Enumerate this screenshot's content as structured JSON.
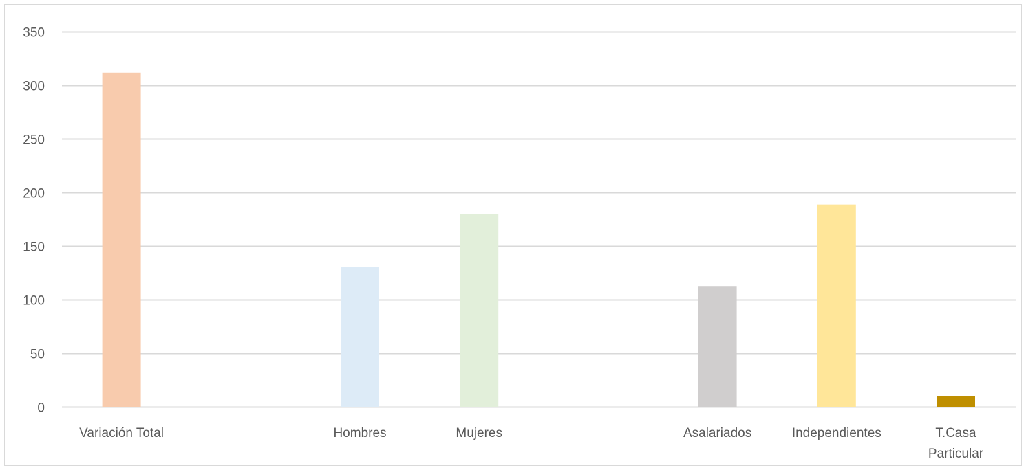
{
  "chart_data": {
    "type": "bar",
    "title": "",
    "xlabel": "",
    "ylabel": "",
    "ylim": [
      0,
      350
    ],
    "yticks": [
      0,
      50,
      100,
      150,
      200,
      250,
      300,
      350
    ],
    "grid": true,
    "legend": "none",
    "categories": [
      [
        "Variación Total"
      ],
      [
        "Hombres"
      ],
      [
        "Mujeres"
      ],
      [
        "Asalariados"
      ],
      [
        "Independientes"
      ],
      [
        "T.Casa",
        "Particular"
      ]
    ],
    "values": [
      312,
      131,
      180,
      113,
      189,
      10
    ],
    "colors": [
      "#f8cbad",
      "#ddebf7",
      "#e2efda",
      "#d0cece",
      "#ffe699",
      "#bf8f00"
    ]
  },
  "colors": {
    "grid": "#d9d9d9",
    "text": "#595959",
    "border": "#d9d9d9"
  }
}
